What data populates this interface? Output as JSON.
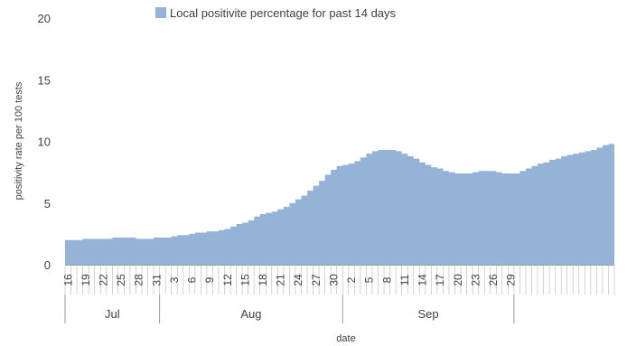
{
  "chart_data": {
    "type": "area",
    "legend": {
      "label": "Local positivite percentage for past 14 days",
      "placement": "top",
      "color": "#95b3d7"
    },
    "ylabel": "positivity rate per 100 tests",
    "xlabel": "date",
    "ylim": [
      0,
      20
    ],
    "yticks": [
      "0",
      "5",
      "10",
      "15",
      "20"
    ],
    "grid": false,
    "months": [
      "Jul",
      "Aug",
      "Sep"
    ],
    "x_start": "Jul 16",
    "x_end": "Sep 29",
    "day_ticks": [
      "16",
      "19",
      "22",
      "25",
      "28",
      "31",
      "3",
      "6",
      "9",
      "12",
      "15",
      "18",
      "21",
      "24",
      "27",
      "30",
      "2",
      "5",
      "8",
      "11",
      "14",
      "17",
      "20",
      "23",
      "26",
      "29"
    ],
    "series": [
      {
        "values": [
          2.0,
          2.0,
          2.0,
          2.1,
          2.1,
          2.1,
          2.1,
          2.1,
          2.2,
          2.2,
          2.2,
          2.2,
          2.1,
          2.1,
          2.1,
          2.2,
          2.2,
          2.2,
          2.3,
          2.4,
          2.4,
          2.5,
          2.6,
          2.6,
          2.7,
          2.7,
          2.8,
          2.9,
          3.1,
          3.3,
          3.4,
          3.6,
          3.9,
          4.1,
          4.2,
          4.3,
          4.5,
          4.7,
          5.0,
          5.3,
          5.6,
          6.0,
          6.4,
          6.8,
          7.3,
          7.7,
          8.0,
          8.1,
          8.2,
          8.4,
          8.7,
          9.0,
          9.2,
          9.3,
          9.3,
          9.3,
          9.2,
          9.0,
          8.8,
          8.6,
          8.3,
          8.1,
          7.9,
          7.8,
          7.6,
          7.5,
          7.4,
          7.4,
          7.4,
          7.5,
          7.6,
          7.6,
          7.6,
          7.5,
          7.4,
          7.4,
          7.4,
          7.6,
          7.8,
          8.0,
          8.2,
          8.3,
          8.5,
          8.6,
          8.8,
          8.9,
          9.0,
          9.1,
          9.2,
          9.3,
          9.5,
          9.7,
          9.8
        ]
      }
    ]
  }
}
